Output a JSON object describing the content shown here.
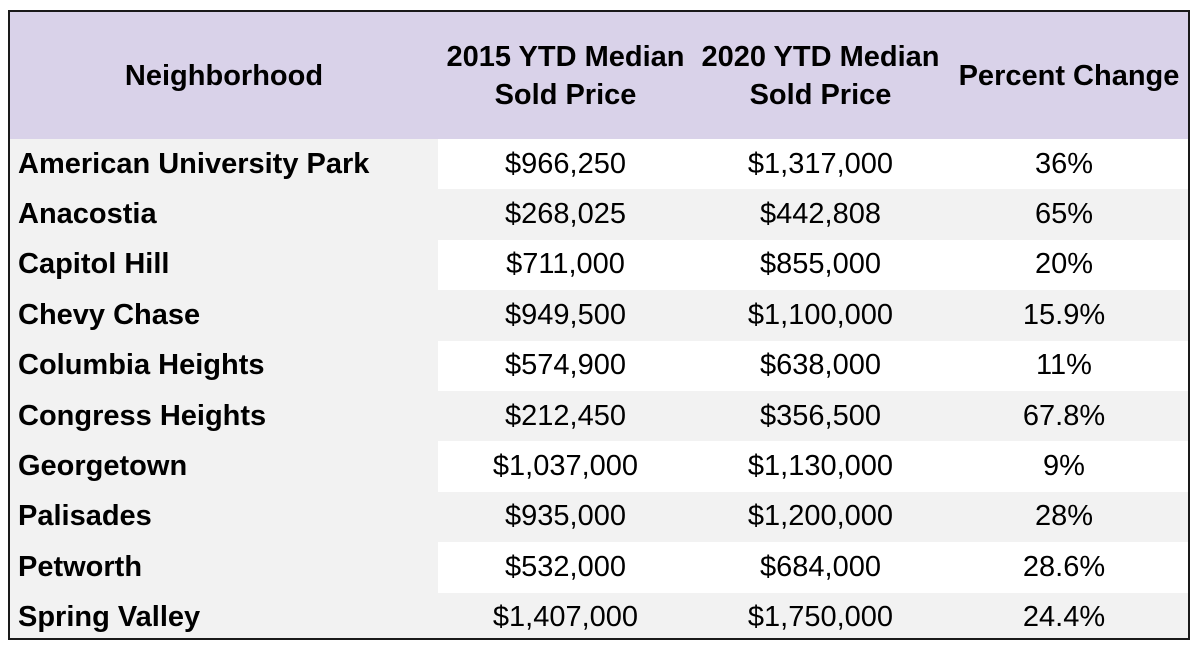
{
  "table": {
    "headers": [
      "Neighborhood",
      "2015 YTD Median Sold Price",
      "2020 YTD Median Sold Price",
      "Percent Change"
    ],
    "rows": [
      {
        "neighborhood": "American University Park",
        "price_2015": "$966,250",
        "price_2020": "$1,317,000",
        "change": "36%"
      },
      {
        "neighborhood": "Anacostia",
        "price_2015": "$268,025",
        "price_2020": "$442,808",
        "change": "65%"
      },
      {
        "neighborhood": "Capitol Hill",
        "price_2015": "$711,000",
        "price_2020": "$855,000",
        "change": "20%"
      },
      {
        "neighborhood": "Chevy Chase",
        "price_2015": "$949,500",
        "price_2020": "$1,100,000",
        "change": "15.9%"
      },
      {
        "neighborhood": "Columbia Heights",
        "price_2015": "$574,900",
        "price_2020": "$638,000",
        "change": "11%"
      },
      {
        "neighborhood": "Congress Heights",
        "price_2015": "$212,450",
        "price_2020": "$356,500",
        "change": "67.8%"
      },
      {
        "neighborhood": "Georgetown",
        "price_2015": "$1,037,000",
        "price_2020": "$1,130,000",
        "change": "9%"
      },
      {
        "neighborhood": "Palisades",
        "price_2015": "$935,000",
        "price_2020": "$1,200,000",
        "change": "28%"
      },
      {
        "neighborhood": "Petworth",
        "price_2015": "$532,000",
        "price_2020": "$684,000",
        "change": "28.6%"
      },
      {
        "neighborhood": "Spring Valley",
        "price_2015": "$1,407,000",
        "price_2020": "$1,750,000",
        "change": "24.4%"
      }
    ]
  }
}
